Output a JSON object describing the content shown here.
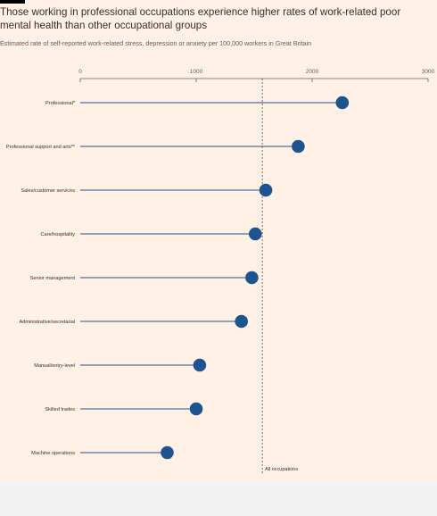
{
  "title": "Those working in professional occupations experience higher rates of work-related poor mental health than other occupational groups",
  "subtitle": "Estimated rate of self-reported work-related stress, depression or anxiety per 100,000 workers in Great Britain",
  "colors": {
    "background": "#fff1e5",
    "dot": "#1f5390",
    "stem": "#1f5390",
    "axis": "#66605c",
    "reference_line": "#33302e",
    "text": "#33302e"
  },
  "chart_data": {
    "type": "lollipop",
    "orientation": "horizontal",
    "xlim": [
      0,
      3000
    ],
    "xticks": [
      0,
      1000,
      2000,
      3000
    ],
    "xtick_labels": [
      "0",
      "1000",
      "2000",
      "3000"
    ],
    "grid": false,
    "categories": [
      "Professional*",
      "Professional support and arts**",
      "Sales/customer services",
      "Care/hospitality",
      "Senior management",
      "Administrative/secretarial",
      "Manual/entry-level",
      "Skilled trades",
      "Machine operations"
    ],
    "values": [
      2260,
      1880,
      1600,
      1510,
      1480,
      1390,
      1030,
      1000,
      750
    ],
    "reference_line": {
      "value": 1570,
      "label": "All occupations"
    }
  }
}
